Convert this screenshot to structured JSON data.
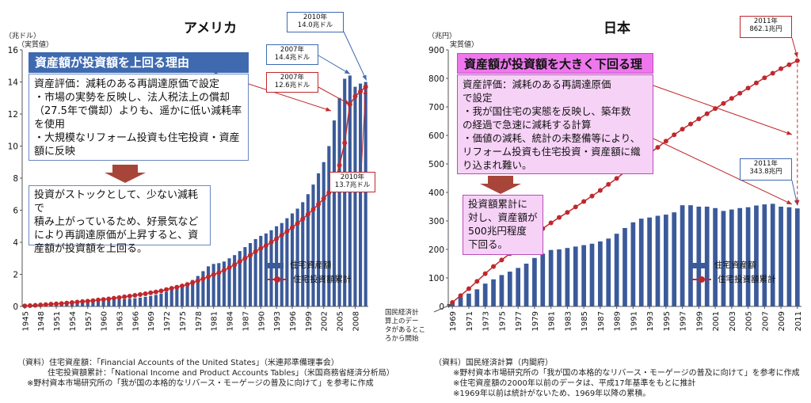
{
  "left": {
    "title": "アメリカ",
    "unit": "（兆ドル）",
    "value_type": "（実質値）",
    "banner": "資産額が投資額を上回る理由",
    "explain_lines": [
      "資産評価：減耗のある再調達原価で設定",
      "・市場の実勢を反映し、法人税法上の償却",
      "（27.5年で償却）よりも、遥かに低い減耗率",
      "を使用",
      "・大規模なリフォーム投資も住宅投資・資産",
      "額に反映"
    ],
    "conclusion_lines": [
      "投資がストックとして、少ない減耗で",
      "積み上がっているため、好景気など",
      "により再調達原価が上昇すると、資",
      "産額が投資額を上回る。"
    ],
    "callouts": {
      "c2010_asset": [
        "2010年",
        "14.0兆ドル"
      ],
      "c2007_asset": [
        "2007年",
        "14.4兆ドル"
      ],
      "c2007_inv": [
        "2007年",
        "12.6兆ドル"
      ],
      "c2010_inv": [
        "2010年",
        "13.7兆ドル"
      ]
    },
    "legend": {
      "bar": "住宅資産額",
      "line": "住宅投資額累計"
    },
    "notes": [
      "（資料）住宅資産額：「Financial Accounts of the United States」（米連邦準備理事会）",
      "住宅投資額累計：「National Income and Product Accounts Tables」（米国商務省経済分析局）",
      "※野村資本市場研究所の「我が国の本格的なリバース・モーゲージの普及に向けて」を参考に作成"
    ]
  },
  "right": {
    "title": "日本",
    "unit": "（兆円）",
    "value_type": "実質値）",
    "banner": "資産額が投資額を大きく下回る理由",
    "explain_lines": [
      "資産評価：減耗のある再調達原価",
      "で設定",
      "・我が国住宅の実態を反映し、築年数",
      "の経過で急速に減耗する計算",
      "・価値の減耗、統計の未整備等により、",
      "リフォーム投資も住宅投資・資産額に織",
      "り込まれ難い。"
    ],
    "conclusion_lines": [
      "投資額累計に",
      "対し、資産額が",
      "500兆円程度",
      "下回る。"
    ],
    "callouts": {
      "c2011_inv": [
        "2011年",
        "862.1兆円"
      ],
      "c2011_asset": [
        "2011年",
        "343.8兆円"
      ]
    },
    "origin_note": [
      "国民経済計",
      "算上のデー",
      "タがあるとこ",
      "ろから開始"
    ],
    "legend": {
      "bar": "住宅資産額",
      "line": "住宅投資額累計"
    },
    "notes": [
      "（資料）国民経済計算（内閣府）",
      "※野村資本市場研究所の「我が国の本格的なリバース・モーゲージの普及に向けて」を参考に作成",
      "※住宅資産額の2000年以前のデータは、平成17年基準をもとに推計",
      "※1969年以前は統計がないため、1969年以降の累積。"
    ]
  },
  "colors": {
    "bar": "#3b5a9a",
    "line": "#c0282d",
    "us_banner": "#3f6ab0",
    "jp_banner": "#ee77ee",
    "jp_box": "#f7d2f7",
    "arrow_block": "#a8453a"
  },
  "chart_data": [
    {
      "type": "bar",
      "title": "アメリカ",
      "ylabel": "（兆ドル）",
      "ylim": [
        0,
        16
      ],
      "yticks": [
        0,
        2,
        4,
        6,
        8,
        10,
        12,
        14,
        16
      ],
      "x_tick_labels": [
        "1945",
        "1948",
        "1951",
        "1954",
        "1957",
        "1960",
        "1963",
        "1966",
        "1969",
        "1972",
        "1975",
        "1978",
        "1981",
        "1984",
        "1987",
        "1990",
        "1993",
        "1996",
        "1999",
        "2002",
        "2005",
        "2008"
      ],
      "x": [
        1945,
        1946,
        1947,
        1948,
        1949,
        1950,
        1951,
        1952,
        1953,
        1954,
        1955,
        1956,
        1957,
        1958,
        1959,
        1960,
        1961,
        1962,
        1963,
        1964,
        1965,
        1966,
        1967,
        1968,
        1969,
        1970,
        1971,
        1972,
        1973,
        1974,
        1975,
        1976,
        1977,
        1978,
        1979,
        1980,
        1981,
        1982,
        1983,
        1984,
        1985,
        1986,
        1987,
        1988,
        1989,
        1990,
        1991,
        1992,
        1993,
        1994,
        1995,
        1996,
        1997,
        1998,
        1999,
        2000,
        2001,
        2002,
        2003,
        2004,
        2005,
        2006,
        2007,
        2008,
        2009,
        2010
      ],
      "series": [
        {
          "name": "住宅資産額",
          "kind": "bar",
          "values": [
            0.08,
            0.1,
            0.12,
            0.14,
            0.15,
            0.17,
            0.19,
            0.2,
            0.22,
            0.23,
            0.25,
            0.27,
            0.29,
            0.31,
            0.33,
            0.35,
            0.37,
            0.4,
            0.42,
            0.45,
            0.48,
            0.51,
            0.55,
            0.6,
            0.66,
            0.72,
            0.8,
            0.9,
            1.02,
            1.15,
            1.3,
            1.45,
            1.65,
            1.9,
            2.2,
            2.5,
            2.65,
            2.7,
            2.8,
            3.0,
            3.2,
            3.45,
            3.7,
            3.95,
            4.2,
            4.4,
            4.55,
            4.75,
            5.0,
            5.2,
            5.5,
            5.8,
            6.1,
            6.5,
            7.0,
            7.6,
            8.3,
            9.0,
            10.0,
            11.6,
            13.0,
            14.2,
            14.4,
            13.7,
            13.9,
            14.0
          ]
        },
        {
          "name": "住宅投資額累計",
          "kind": "line",
          "values": [
            0.03,
            0.05,
            0.07,
            0.09,
            0.11,
            0.14,
            0.16,
            0.18,
            0.21,
            0.24,
            0.27,
            0.3,
            0.33,
            0.36,
            0.4,
            0.43,
            0.47,
            0.51,
            0.55,
            0.6,
            0.64,
            0.69,
            0.74,
            0.79,
            0.85,
            0.9,
            0.97,
            1.05,
            1.13,
            1.2,
            1.28,
            1.37,
            1.48,
            1.6,
            1.73,
            1.85,
            1.98,
            2.1,
            2.25,
            2.42,
            2.6,
            2.8,
            3.0,
            3.2,
            3.42,
            3.62,
            3.8,
            4.0,
            4.22,
            4.45,
            4.68,
            4.92,
            5.18,
            5.45,
            5.75,
            6.05,
            6.37,
            6.72,
            7.1,
            7.55,
            8.8,
            10.2,
            12.6,
            13.1,
            13.4,
            13.7
          ]
        }
      ]
    },
    {
      "type": "bar",
      "title": "日本",
      "ylabel": "（兆円）",
      "ylim": [
        0,
        900
      ],
      "yticks": [
        0,
        100,
        200,
        300,
        400,
        500,
        600,
        700,
        800,
        900
      ],
      "x_tick_labels": [
        "1969",
        "1971",
        "1973",
        "1975",
        "1977",
        "1979",
        "1981",
        "1983",
        "1985",
        "1987",
        "1989",
        "1991",
        "1993",
        "1995",
        "1997",
        "1999",
        "2001",
        "2003",
        "2005",
        "2007",
        "2009",
        "2011"
      ],
      "x": [
        1969,
        1970,
        1971,
        1972,
        1973,
        1974,
        1975,
        1976,
        1977,
        1978,
        1979,
        1980,
        1981,
        1982,
        1983,
        1984,
        1985,
        1986,
        1987,
        1988,
        1989,
        1990,
        1991,
        1992,
        1993,
        1994,
        1995,
        1996,
        1997,
        1998,
        1999,
        2000,
        2001,
        2002,
        2003,
        2004,
        2005,
        2006,
        2007,
        2008,
        2009,
        2010,
        2011
      ],
      "series": [
        {
          "name": "住宅資産額",
          "kind": "bar",
          "values": [
            15,
            32,
            45,
            60,
            80,
            95,
            110,
            122,
            135,
            150,
            170,
            185,
            198,
            200,
            205,
            210,
            215,
            220,
            228,
            238,
            255,
            275,
            295,
            308,
            312,
            318,
            322,
            330,
            355,
            355,
            350,
            350,
            345,
            335,
            340,
            345,
            348,
            354,
            358,
            360,
            350,
            348,
            343.8
          ]
        },
        {
          "name": "住宅投資額累計",
          "kind": "line",
          "values": [
            14,
            38,
            62,
            88,
            115,
            140,
            163,
            185,
            207,
            230,
            252,
            273,
            293,
            312,
            330,
            349,
            368,
            387,
            407,
            428,
            449,
            472,
            494,
            516,
            537,
            558,
            580,
            602,
            622,
            640,
            658,
            676,
            694,
            712,
            730,
            748,
            766,
            784,
            802,
            818,
            834,
            848,
            862.1
          ]
        }
      ]
    }
  ]
}
